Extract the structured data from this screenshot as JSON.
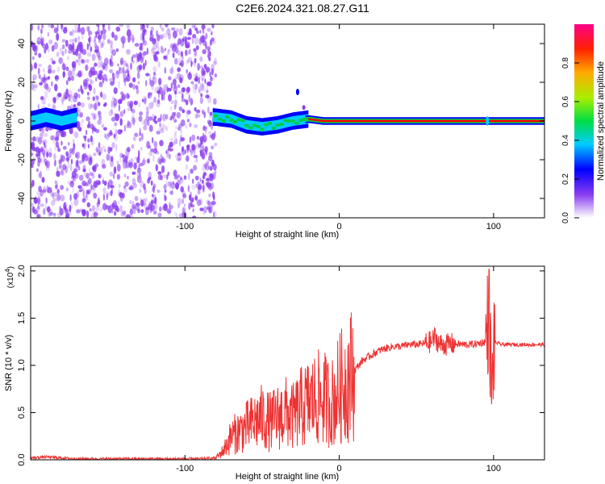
{
  "title": "C2E6.2024.321.08.27.G11",
  "chart_data": [
    {
      "type": "heatmap",
      "xlabel": "Height of straight line (km)",
      "ylabel": "Frequency (Hz)",
      "xlim": [
        -200,
        133
      ],
      "ylim": [
        -50,
        50
      ],
      "xticks": [
        -100,
        0,
        100
      ],
      "xtick_labels": [
        "-100",
        "0",
        "100"
      ],
      "yticks": [
        -40,
        -20,
        0,
        20,
        40
      ],
      "ytick_labels": [
        "-40",
        "-20",
        "0",
        "20",
        "40"
      ],
      "colorbar": {
        "label": "Normalized spectral amplitude",
        "range": [
          0,
          1
        ],
        "ticks": [
          0,
          0.2,
          0.4,
          0.6,
          0.8
        ],
        "tick_labels": [
          "0.0",
          "0.2",
          "0.4",
          "0.6",
          "0.8"
        ]
      },
      "regions": [
        {
          "x_from": -200,
          "x_to": -80,
          "freq_from": -50,
          "freq_to": 50,
          "amplitude": 0.15
        },
        {
          "x_from": -80,
          "x_to": -20,
          "freq_from": -5,
          "freq_to": 5,
          "amplitude": 0.4
        },
        {
          "x_from": -20,
          "x_to": 133,
          "freq_from": -1,
          "freq_to": 1,
          "amplitude": 0.95
        }
      ],
      "ridge": {
        "x": [
          -200,
          -190,
          -180,
          -170,
          -80,
          -70,
          -60,
          -50,
          -40,
          -30,
          -20,
          -10,
          0,
          20,
          60,
          96,
          133
        ],
        "freq": [
          0,
          2,
          0,
          2,
          2,
          1,
          -2,
          -3,
          -2,
          0,
          1,
          0,
          0,
          0,
          0,
          0,
          0
        ]
      },
      "colors": {
        "ridge_core": "#ff0000",
        "ridge_band": "#00cc44",
        "ridge_edge": "#0000ff",
        "noise": "#8a3cf0"
      }
    },
    {
      "type": "line",
      "xlabel": "Height of straight line (km)",
      "ylabel": "SNR (10 * v/v)",
      "multiplier_label": "(x10",
      "multiplier_exponent": "4",
      "xlim": [
        -200,
        133
      ],
      "ylim": [
        0,
        2.05
      ],
      "xticks": [
        -100,
        0,
        100
      ],
      "xtick_labels": [
        "-100",
        "0",
        "100"
      ],
      "yticks": [
        0,
        0.5,
        1.0,
        1.5,
        2.0
      ],
      "ytick_labels": [
        "0.0",
        "0.5",
        "1.0",
        "1.5",
        "2.0"
      ],
      "series": [
        {
          "x": [
            -200,
            -190,
            -180,
            -170,
            -150,
            -120,
            -100,
            -90,
            -80,
            -75,
            -70,
            -65,
            -60,
            -55,
            -50,
            -45,
            -40,
            -35,
            -30,
            -25,
            -20,
            -15,
            -10,
            -5,
            0,
            5,
            10,
            15,
            20,
            25,
            30,
            35,
            40,
            45,
            50,
            55,
            60,
            62,
            65,
            70,
            75,
            80,
            85,
            90,
            95,
            97,
            99,
            100,
            105,
            110,
            120,
            133
          ],
          "y": [
            0.02,
            0.03,
            0.02,
            0.01,
            0.01,
            0.01,
            0.01,
            0.01,
            0.02,
            0.1,
            0.25,
            0.3,
            0.35,
            0.4,
            0.45,
            0.4,
            0.45,
            0.5,
            0.45,
            0.55,
            0.6,
            0.65,
            0.65,
            0.6,
            0.75,
            0.85,
            0.95,
            1.05,
            1.1,
            1.15,
            1.18,
            1.2,
            1.2,
            1.22,
            1.22,
            1.23,
            1.25,
            1.3,
            1.22,
            1.22,
            1.23,
            1.22,
            1.22,
            1.23,
            1.25,
            1.6,
            0.6,
            1.25,
            1.22,
            1.22,
            1.22,
            1.22
          ]
        }
      ],
      "colors": {
        "line": "#ee3333"
      }
    }
  ]
}
